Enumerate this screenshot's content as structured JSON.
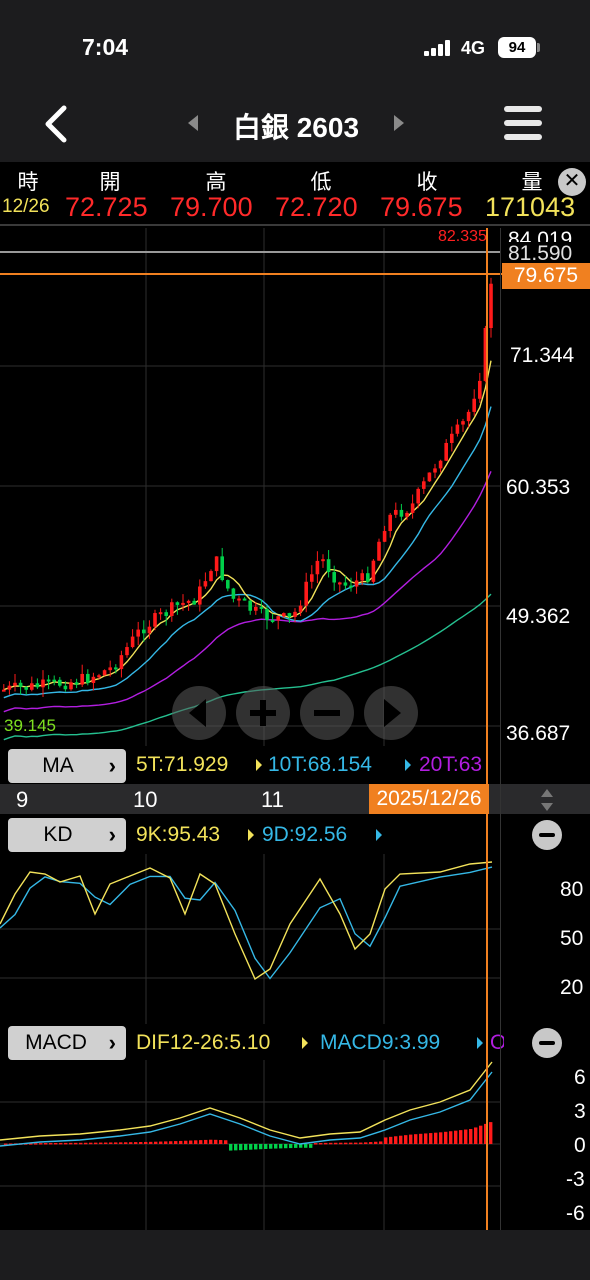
{
  "status": {
    "time": "7:04",
    "network": "4G",
    "battery": "94"
  },
  "nav": {
    "title": "白銀 2603"
  },
  "quote": {
    "labels": {
      "time": "時",
      "open": "開",
      "high": "高",
      "low": "低",
      "close": "收",
      "volume": "量"
    },
    "values": {
      "time": "12/26",
      "open": "72.725",
      "high": "79.700",
      "low": "72.720",
      "close": "79.675",
      "volume": "171043"
    }
  },
  "main_chart": {
    "max_label": "82.335",
    "min_label": "39.145",
    "y_ticks": [
      "84.019",
      "71.344",
      "60.353",
      "49.362",
      "36.687"
    ],
    "price_line": "81.590",
    "last_price": "79.675"
  },
  "ma": {
    "label": "MA",
    "ma5": "5T:71.929",
    "ma10": "10T:68.154",
    "ma20": "20T:63"
  },
  "dates": {
    "d1": "9",
    "d2": "10",
    "d3": "11",
    "current": "2025/12/26"
  },
  "kd": {
    "label": "KD",
    "k": "9K:95.43",
    "d": "9D:92.56",
    "ticks": [
      "80",
      "50",
      "20"
    ]
  },
  "macd": {
    "label": "MACD",
    "dif": "DIF12-26:5.10",
    "macd9": "MACD9:3.99",
    "osc": "O",
    "ticks": [
      "6",
      "3",
      "0",
      "-3",
      "-6"
    ]
  },
  "colors": {
    "up": "#ff1a1a",
    "down": "#00d04a",
    "ma5": "#f2e25a",
    "ma10": "#35b8e6",
    "ma20": "#b21ee0",
    "ma60": "#25c090",
    "accent": "#f08020"
  }
}
